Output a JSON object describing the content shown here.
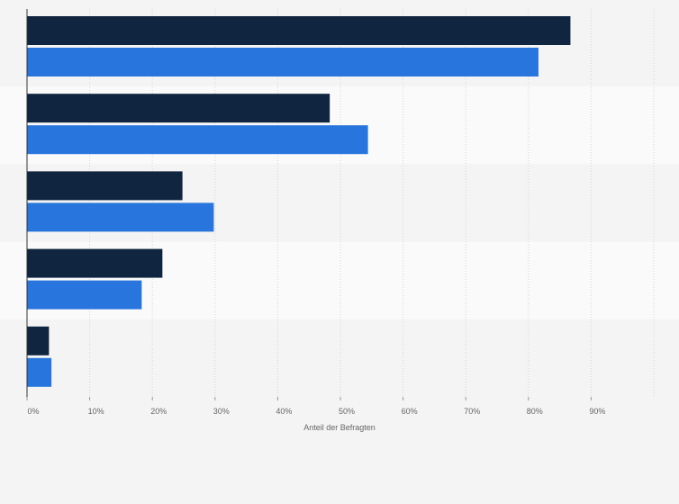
{
  "chart_data": {
    "type": "bar",
    "orientation": "horizontal",
    "categories": [
      "",
      "",
      "",
      "",
      ""
    ],
    "series": [
      {
        "color": "#0f2540",
        "values": [
          86.7,
          48.3,
          24.8,
          21.6,
          3.5
        ]
      },
      {
        "color": "#2876dd",
        "values": [
          81.6,
          54.4,
          29.8,
          18.3,
          3.9
        ]
      }
    ],
    "xlim": [
      0,
      100
    ],
    "xticks": [
      "0%",
      "10%",
      "20%",
      "30%",
      "40%",
      "50%",
      "60%",
      "70%",
      "80%",
      "90%"
    ],
    "xlabel": "Anteil der Befragten",
    "grid": true,
    "legend": "none"
  }
}
